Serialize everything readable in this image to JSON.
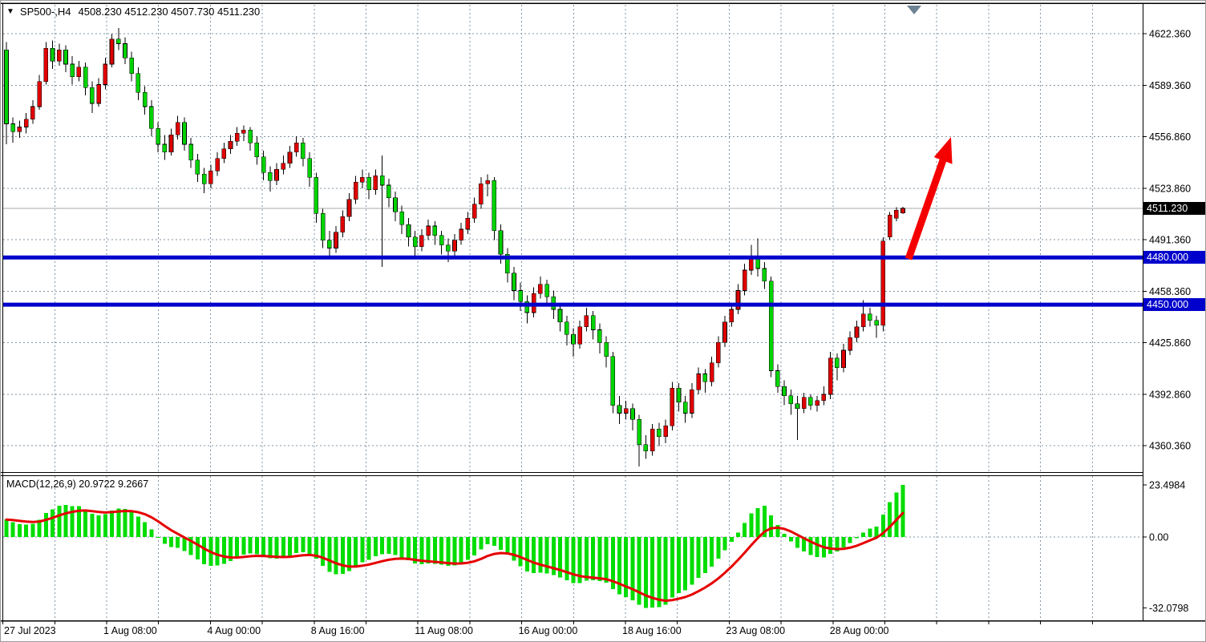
{
  "header": {
    "dropdown_icon": "▼",
    "symbol_period": "SP500-,H4",
    "ohlc_text": "4508.230 4512.230 4507.730 4511.230"
  },
  "price_axis": {
    "ticks": [
      {
        "label": "4622.360",
        "value": 4622.36
      },
      {
        "label": "4589.360",
        "value": 4589.36
      },
      {
        "label": "4556.860",
        "value": 4556.86
      },
      {
        "label": "4523.860",
        "value": 4523.86
      },
      {
        "label": "4491.360",
        "value": 4491.36
      },
      {
        "label": "4458.360",
        "value": 4458.36
      },
      {
        "label": "4425.860",
        "value": 4425.86
      },
      {
        "label": "4392.860",
        "value": 4392.86
      },
      {
        "label": "4360.360",
        "value": 4360.36
      }
    ],
    "current_price": {
      "label": "4511.230",
      "value": 4511.23
    }
  },
  "levels": [
    {
      "label": "4480.000",
      "value": 4480.0
    },
    {
      "label": "4450.000",
      "value": 4450.0
    }
  ],
  "time_axis": {
    "labels": [
      "27 Jul 2023",
      "1 Aug 08:00",
      "4 Aug 00:00",
      "8 Aug 16:00",
      "11 Aug 08:00",
      "16 Aug 00:00",
      "18 Aug 16:00",
      "23 Aug 08:00",
      "28 Aug 00:00"
    ]
  },
  "macd_panel": {
    "label": "MACD(12,26,9) 20.9722 9.2667",
    "main_value": "20.9722",
    "signal_value": "9.2667",
    "ticks": [
      {
        "label": "23.4984",
        "value": 23.4984
      },
      {
        "label": "0.00",
        "value": 0
      },
      {
        "label": "-32.0798",
        "value": -32.0798
      }
    ]
  },
  "colors": {
    "bull_candle": "#e00000",
    "bear_candle": "#00d300",
    "wick": "#000000",
    "level_line": "#0000cc",
    "grid": "#8294a5",
    "macd_histogram": "#00dd00",
    "macd_signal": "#e60000",
    "arrow": "#f40000",
    "current_price_line": "#a8a8a8",
    "shift_marker": "#6e8494",
    "border": "#000000"
  },
  "chart_data": {
    "type": "candlestick",
    "symbol": "SP500-",
    "timeframe": "H4",
    "title": "SP500-,H4 4508.230 4512.230 4507.730 4511.230",
    "last_bar": {
      "open": 4508.23,
      "high": 4512.23,
      "low": 4507.73,
      "close": 4511.23
    },
    "price_axis_range": [
      4343.5,
      4641.5
    ],
    "grid": true,
    "color_scheme": "bull=red, bear=green",
    "horizontal_levels": [
      4480.0,
      4450.0
    ],
    "annotation": {
      "type": "arrow-up-right",
      "color_hint": "red",
      "meaning": "projected breakout continuation above 4480"
    },
    "indicator": {
      "type": "MACD",
      "fast": 12,
      "slow": 26,
      "signal": 9,
      "last_macd": 20.9722,
      "last_signal": 9.2667,
      "scale_max": 23.4984,
      "scale_min": -32.0798
    },
    "candles": [
      [
        4612,
        4617,
        4552,
        4565
      ],
      [
        4565,
        4569,
        4553,
        4560
      ],
      [
        4560,
        4567,
        4556,
        4563
      ],
      [
        4563,
        4572,
        4559,
        4568
      ],
      [
        4568,
        4580,
        4565,
        4576
      ],
      [
        4576,
        4596,
        4574,
        4592
      ],
      [
        4592,
        4617,
        4590,
        4613
      ],
      [
        4613,
        4618,
        4600,
        4605
      ],
      [
        4605,
        4616,
        4602,
        4612
      ],
      [
        4612,
        4615,
        4598,
        4603
      ],
      [
        4603,
        4608,
        4590,
        4595
      ],
      [
        4595,
        4605,
        4592,
        4601
      ],
      [
        4601,
        4604,
        4583,
        4588
      ],
      [
        4588,
        4592,
        4572,
        4578
      ],
      [
        4578,
        4594,
        4576,
        4590
      ],
      [
        4590,
        4607,
        4587,
        4603
      ],
      [
        4603,
        4622,
        4601,
        4619
      ],
      [
        4619,
        4626,
        4612,
        4616
      ],
      [
        4616,
        4620,
        4603,
        4607
      ],
      [
        4607,
        4611,
        4592,
        4597
      ],
      [
        4597,
        4601,
        4580,
        4585
      ],
      [
        4585,
        4589,
        4571,
        4576
      ],
      [
        4576,
        4580,
        4557,
        4562
      ],
      [
        4562,
        4566,
        4547,
        4552
      ],
      [
        4552,
        4558,
        4542,
        4547
      ],
      [
        4547,
        4562,
        4545,
        4558
      ],
      [
        4558,
        4570,
        4555,
        4566
      ],
      [
        4566,
        4569,
        4548,
        4552
      ],
      [
        4552,
        4556,
        4537,
        4542
      ],
      [
        4542,
        4546,
        4528,
        4533
      ],
      [
        4533,
        4537,
        4521,
        4527
      ],
      [
        4527,
        4539,
        4524,
        4535
      ],
      [
        4535,
        4547,
        4532,
        4543
      ],
      [
        4543,
        4553,
        4540,
        4549
      ],
      [
        4549,
        4558,
        4546,
        4554
      ],
      [
        4554,
        4563,
        4551,
        4559
      ],
      [
        4559,
        4564,
        4554,
        4561
      ],
      [
        4561,
        4563,
        4548,
        4553
      ],
      [
        4553,
        4557,
        4539,
        4544
      ],
      [
        4544,
        4548,
        4529,
        4534
      ],
      [
        4534,
        4538,
        4522,
        4529
      ],
      [
        4529,
        4540,
        4526,
        4536
      ],
      [
        4536,
        4545,
        4533,
        4540
      ],
      [
        4540,
        4551,
        4537,
        4547
      ],
      [
        4547,
        4557,
        4544,
        4553
      ],
      [
        4553,
        4556,
        4538,
        4543
      ],
      [
        4543,
        4547,
        4525,
        4531
      ],
      [
        4531,
        4534,
        4502,
        4508
      ],
      [
        4508,
        4511,
        4486,
        4491
      ],
      [
        4491,
        4497,
        4479,
        4486
      ],
      [
        4486,
        4500,
        4483,
        4496
      ],
      [
        4496,
        4510,
        4493,
        4506
      ],
      [
        4506,
        4521,
        4503,
        4517
      ],
      [
        4517,
        4532,
        4514,
        4528
      ],
      [
        4528,
        4536,
        4524,
        4531
      ],
      [
        4531,
        4534,
        4517,
        4523
      ],
      [
        4523,
        4536,
        4520,
        4532
      ],
      [
        4532,
        4545,
        4474,
        4526
      ],
      [
        4526,
        4530,
        4512,
        4518
      ],
      [
        4518,
        4522,
        4503,
        4509
      ],
      [
        4509,
        4513,
        4495,
        4501
      ],
      [
        4501,
        4505,
        4487,
        4493
      ],
      [
        4493,
        4497,
        4481,
        4487
      ],
      [
        4487,
        4498,
        4484,
        4494
      ],
      [
        4494,
        4504,
        4491,
        4500
      ],
      [
        4500,
        4503,
        4488,
        4494
      ],
      [
        4494,
        4497,
        4482,
        4488
      ],
      [
        4488,
        4492,
        4477,
        4484
      ],
      [
        4484,
        4495,
        4481,
        4491
      ],
      [
        4491,
        4502,
        4488,
        4498
      ],
      [
        4498,
        4509,
        4495,
        4505
      ],
      [
        4505,
        4518,
        4502,
        4514
      ],
      [
        4514,
        4531,
        4511,
        4527
      ],
      [
        4527,
        4533,
        4519,
        4529
      ],
      [
        4529,
        4531,
        4491,
        4497
      ],
      [
        4497,
        4501,
        4476,
        4482
      ],
      [
        4482,
        4486,
        4464,
        4470
      ],
      [
        4470,
        4474,
        4453,
        4459
      ],
      [
        4459,
        4464,
        4446,
        4452
      ],
      [
        4452,
        4456,
        4438,
        4445
      ],
      [
        4445,
        4461,
        4442,
        4457
      ],
      [
        4457,
        4468,
        4454,
        4463
      ],
      [
        4463,
        4466,
        4449,
        4455
      ],
      [
        4455,
        4459,
        4441,
        4447
      ],
      [
        4447,
        4451,
        4433,
        4439
      ],
      [
        4439,
        4443,
        4424,
        4431
      ],
      [
        4431,
        4435,
        4417,
        4425
      ],
      [
        4425,
        4440,
        4422,
        4436
      ],
      [
        4436,
        4448,
        4433,
        4443
      ],
      [
        4443,
        4446,
        4428,
        4434
      ],
      [
        4434,
        4438,
        4419,
        4426
      ],
      [
        4426,
        4430,
        4410,
        4417
      ],
      [
        4417,
        4420,
        4381,
        4386
      ],
      [
        4386,
        4392,
        4374,
        4381
      ],
      [
        4381,
        4389,
        4377,
        4384
      ],
      [
        4384,
        4387,
        4370,
        4377
      ],
      [
        4377,
        4380,
        4347,
        4361
      ],
      [
        4361,
        4367,
        4352,
        4357
      ],
      [
        4357,
        4374,
        4354,
        4371
      ],
      [
        4371,
        4375,
        4360,
        4366
      ],
      [
        4366,
        4377,
        4362,
        4373
      ],
      [
        4373,
        4401,
        4370,
        4397
      ],
      [
        4397,
        4400,
        4382,
        4388
      ],
      [
        4388,
        4392,
        4375,
        4381
      ],
      [
        4381,
        4400,
        4378,
        4396
      ],
      [
        4396,
        4410,
        4393,
        4406
      ],
      [
        4406,
        4409,
        4394,
        4401
      ],
      [
        4401,
        4417,
        4398,
        4413
      ],
      [
        4413,
        4430,
        4410,
        4426
      ],
      [
        4426,
        4443,
        4423,
        4439
      ],
      [
        4439,
        4451,
        4436,
        4447
      ],
      [
        4447,
        4463,
        4444,
        4459
      ],
      [
        4459,
        4476,
        4456,
        4472
      ],
      [
        4472,
        4488,
        4469,
        4481
      ],
      [
        4481,
        4492,
        4468,
        4473
      ],
      [
        4473,
        4477,
        4460,
        4465
      ],
      [
        4465,
        4468,
        4404,
        4408
      ],
      [
        4408,
        4412,
        4394,
        4398
      ],
      [
        4398,
        4402,
        4386,
        4392
      ],
      [
        4392,
        4396,
        4380,
        4387
      ],
      [
        4387,
        4392,
        4364,
        4384
      ],
      [
        4384,
        4394,
        4381,
        4391
      ],
      [
        4391,
        4393,
        4383,
        4386
      ],
      [
        4386,
        4392,
        4382,
        4389
      ],
      [
        4389,
        4398,
        4386,
        4393
      ],
      [
        4393,
        4420,
        4390,
        4416
      ],
      [
        4416,
        4419,
        4402,
        4410
      ],
      [
        4410,
        4425,
        4407,
        4421
      ],
      [
        4421,
        4433,
        4418,
        4429
      ],
      [
        4429,
        4440,
        4426,
        4436
      ],
      [
        4436,
        4453,
        4433,
        4444
      ],
      [
        4444,
        4448,
        4436,
        4440
      ],
      [
        4440,
        4443,
        4429,
        4437
      ],
      [
        4437,
        4493,
        4433,
        4490.5
      ],
      [
        4493,
        4509,
        4491,
        4507
      ],
      [
        4505,
        4512,
        4503,
        4510
      ],
      [
        4508.23,
        4512.23,
        4507.73,
        4511.23
      ]
    ]
  }
}
